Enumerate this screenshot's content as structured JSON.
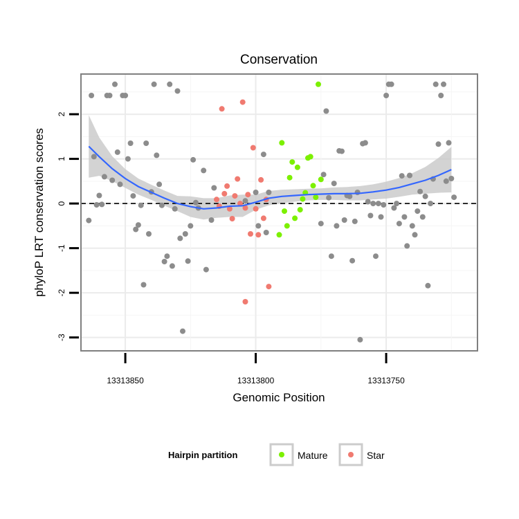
{
  "chart_data": {
    "type": "scatter",
    "title": "Conservation",
    "xlabel": "Genomic Position",
    "ylabel": "phyloP LRT conservation scores",
    "x_reversed": true,
    "xlim": [
      13313867,
      13313715
    ],
    "ylim": [
      -3.3,
      2.9
    ],
    "xticks": [
      13313850,
      13313800,
      13313750
    ],
    "xtick_labels": [
      "13313850",
      "13313800",
      "13313750"
    ],
    "yticks": [
      -3,
      -2,
      -1,
      0,
      1,
      2
    ],
    "ytick_labels": [
      "-3",
      "-2",
      "-1",
      "0",
      "1",
      "2"
    ],
    "grid": true,
    "reference_line": {
      "y": 0,
      "style": "dashed"
    },
    "colors": {
      "other": "#8c8c8c",
      "mature": "#7cf000",
      "star": "#f07a70",
      "smooth": "#3366ff",
      "band": "#c8c8c8"
    },
    "legend": {
      "title": "Hairpin partition",
      "placement": "bottom",
      "entries": [
        {
          "label": "Mature",
          "color": "#7cf000"
        },
        {
          "label": "Star",
          "color": "#f07a70"
        }
      ]
    },
    "series": [
      {
        "group": "other",
        "points": [
          [
            13313864,
            -0.38
          ],
          [
            13313863,
            2.42
          ],
          [
            13313862,
            1.05
          ],
          [
            13313861,
            -0.03
          ],
          [
            13313860,
            0.18
          ],
          [
            13313859,
            -0.02
          ],
          [
            13313858,
            0.6
          ],
          [
            13313857,
            2.42
          ],
          [
            13313856,
            2.42
          ],
          [
            13313855,
            0.52
          ],
          [
            13313854,
            2.67
          ],
          [
            13313853,
            1.15
          ],
          [
            13313852,
            0.43
          ],
          [
            13313851,
            2.42
          ],
          [
            13313850,
            2.42
          ],
          [
            13313849,
            1.0
          ],
          [
            13313848,
            1.35
          ],
          [
            13313847,
            0.17
          ],
          [
            13313846,
            -0.58
          ],
          [
            13313845,
            -0.48
          ],
          [
            13313844,
            -0.04
          ],
          [
            13313843,
            -1.82
          ],
          [
            13313842,
            1.35
          ],
          [
            13313841,
            -0.68
          ],
          [
            13313840,
            0.26
          ],
          [
            13313839,
            2.67
          ],
          [
            13313838,
            1.08
          ],
          [
            13313837,
            0.43
          ],
          [
            13313836,
            -0.04
          ],
          [
            13313835,
            -1.3
          ],
          [
            13313834,
            -1.18
          ],
          [
            13313833,
            2.67
          ],
          [
            13313832,
            -1.4
          ],
          [
            13313831,
            -0.12
          ],
          [
            13313830,
            2.52
          ],
          [
            13313829,
            -0.78
          ],
          [
            13313828,
            -2.86
          ],
          [
            13313827,
            -0.68
          ],
          [
            13313826,
            -1.29
          ],
          [
            13313825,
            -0.5
          ],
          [
            13313824,
            0.98
          ],
          [
            13313823,
            0.02
          ],
          [
            13313822,
            -0.1
          ],
          [
            13313820,
            0.74
          ],
          [
            13313819,
            -1.48
          ],
          [
            13313817,
            -0.37
          ],
          [
            13313816,
            0.35
          ],
          [
            13313804,
            0.06
          ],
          [
            13313800,
            0.25
          ],
          [
            13313799,
            -0.5
          ],
          [
            13313797,
            1.1
          ],
          [
            13313796,
            -0.65
          ],
          [
            13313795,
            0.25
          ],
          [
            13313775,
            -0.45
          ],
          [
            13313774,
            0.65
          ],
          [
            13313773,
            2.07
          ],
          [
            13313772,
            0.13
          ],
          [
            13313771,
            -1.18
          ],
          [
            13313770,
            0.45
          ],
          [
            13313769,
            -0.5
          ],
          [
            13313768,
            1.18
          ],
          [
            13313767,
            1.17
          ],
          [
            13313766,
            -0.37
          ],
          [
            13313765,
            0.18
          ],
          [
            13313764,
            0.16
          ],
          [
            13313763,
            -1.28
          ],
          [
            13313762,
            -0.4
          ],
          [
            13313761,
            0.25
          ],
          [
            13313760,
            -3.05
          ],
          [
            13313759,
            1.34
          ],
          [
            13313758,
            1.36
          ],
          [
            13313757,
            0.04
          ],
          [
            13313756,
            -0.27
          ],
          [
            13313755,
            0.0
          ],
          [
            13313754,
            -1.18
          ],
          [
            13313753,
            0.0
          ],
          [
            13313752,
            -0.3
          ],
          [
            13313751,
            -0.03
          ],
          [
            13313750,
            2.42
          ],
          [
            13313749,
            2.67
          ],
          [
            13313748,
            2.67
          ],
          [
            13313747,
            -0.1
          ],
          [
            13313746,
            0.0
          ],
          [
            13313745,
            -0.45
          ],
          [
            13313744,
            0.62
          ],
          [
            13313743,
            -0.3
          ],
          [
            13313742,
            -0.95
          ],
          [
            13313741,
            0.63
          ],
          [
            13313740,
            -0.5
          ],
          [
            13313739,
            -0.7
          ],
          [
            13313738,
            -0.17
          ],
          [
            13313737,
            0.27
          ],
          [
            13313736,
            -0.3
          ],
          [
            13313735,
            0.16
          ],
          [
            13313734,
            -1.84
          ],
          [
            13313733,
            0.0
          ],
          [
            13313732,
            0.55
          ],
          [
            13313731,
            2.67
          ],
          [
            13313730,
            1.33
          ],
          [
            13313729,
            2.42
          ],
          [
            13313728,
            2.67
          ],
          [
            13313727,
            0.5
          ],
          [
            13313726,
            1.36
          ],
          [
            13313725,
            0.56
          ],
          [
            13313724,
            0.14
          ]
        ]
      },
      {
        "group": "star",
        "points": [
          [
            13313815,
            0.09
          ],
          [
            13313814,
            -0.06
          ],
          [
            13313813,
            2.12
          ],
          [
            13313812,
            0.22
          ],
          [
            13313811,
            0.39
          ],
          [
            13313810,
            -0.12
          ],
          [
            13313809,
            -0.34
          ],
          [
            13313808,
            0.17
          ],
          [
            13313807,
            0.55
          ],
          [
            13313806,
            -0.0
          ],
          [
            13313805,
            2.27
          ],
          [
            13313804,
            -0.1
          ],
          [
            13313803,
            0.2
          ],
          [
            13313802,
            -0.68
          ],
          [
            13313801,
            1.25
          ],
          [
            13313800,
            -0.12
          ],
          [
            13313799,
            -0.7
          ],
          [
            13313798,
            0.53
          ],
          [
            13313797,
            -0.33
          ],
          [
            13313796,
            0.09
          ],
          [
            13313795,
            -1.86
          ],
          [
            13313804,
            -2.2
          ]
        ]
      },
      {
        "group": "mature",
        "points": [
          [
            13313791,
            -0.7
          ],
          [
            13313790,
            1.36
          ],
          [
            13313789,
            -0.17
          ],
          [
            13313788,
            -0.5
          ],
          [
            13313787,
            0.58
          ],
          [
            13313786,
            0.93
          ],
          [
            13313785,
            -0.33
          ],
          [
            13313784,
            0.81
          ],
          [
            13313783,
            -0.14
          ],
          [
            13313782,
            0.1
          ],
          [
            13313781,
            0.24
          ],
          [
            13313780,
            1.02
          ],
          [
            13313779,
            1.05
          ],
          [
            13313778,
            0.4
          ],
          [
            13313777,
            0.14
          ],
          [
            13313776,
            2.67
          ],
          [
            13313775,
            0.54
          ]
        ]
      }
    ],
    "smooth": {
      "x": [
        13313864,
        13313860,
        13313855,
        13313850,
        13313845,
        13313840,
        13313835,
        13313830,
        13313825,
        13313820,
        13313815,
        13313810,
        13313805,
        13313800,
        13313795,
        13313790,
        13313785,
        13313780,
        13313775,
        13313770,
        13313765,
        13313760,
        13313755,
        13313750,
        13313745,
        13313740,
        13313735,
        13313730,
        13313725
      ],
      "y": [
        1.28,
        1.05,
        0.78,
        0.56,
        0.38,
        0.25,
        0.12,
        0.0,
        -0.07,
        -0.12,
        -0.1,
        -0.06,
        -0.05,
        0.03,
        0.12,
        0.16,
        0.18,
        0.2,
        0.21,
        0.22,
        0.22,
        0.23,
        0.26,
        0.3,
        0.36,
        0.44,
        0.52,
        0.63,
        0.76
      ],
      "lower": [
        0.58,
        0.62,
        0.5,
        0.35,
        0.2,
        0.08,
        -0.05,
        -0.17,
        -0.3,
        -0.36,
        -0.32,
        -0.3,
        -0.3,
        -0.14,
        -0.04,
        0.01,
        0.04,
        0.07,
        0.08,
        0.08,
        0.07,
        0.07,
        0.09,
        0.11,
        0.15,
        0.2,
        0.22,
        0.24,
        0.25
      ],
      "upper": [
        1.98,
        1.48,
        1.06,
        0.77,
        0.56,
        0.42,
        0.29,
        0.17,
        0.16,
        0.12,
        0.12,
        0.18,
        0.2,
        0.2,
        0.28,
        0.31,
        0.32,
        0.33,
        0.34,
        0.36,
        0.37,
        0.39,
        0.43,
        0.49,
        0.57,
        0.68,
        0.82,
        1.02,
        1.27
      ]
    }
  }
}
